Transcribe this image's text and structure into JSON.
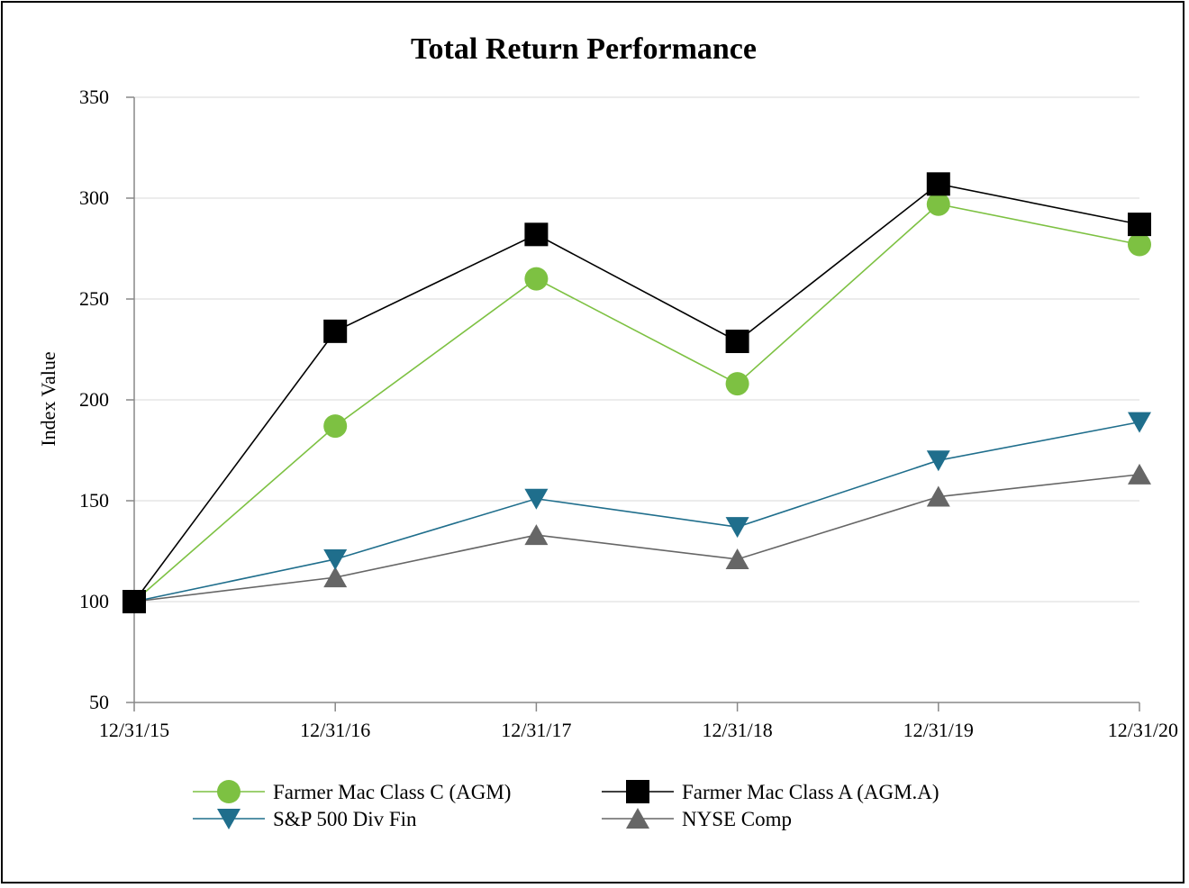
{
  "chart_data": {
    "type": "line",
    "title": "Total Return Performance",
    "xlabel": "",
    "ylabel": "Index Value",
    "categories": [
      "12/31/15",
      "12/31/16",
      "12/31/17",
      "12/31/18",
      "12/31/19",
      "12/31/20"
    ],
    "yticks": [
      50,
      100,
      150,
      200,
      250,
      300,
      350
    ],
    "ylim": [
      50,
      350
    ],
    "grid": "horizontal",
    "legend_position": "bottom",
    "series": [
      {
        "name": "Farmer Mac Class C (AGM)",
        "color": "#7dc142",
        "marker": "circle",
        "values": [
          100,
          187,
          260,
          208,
          297,
          277
        ]
      },
      {
        "name": "Farmer Mac Class A (AGM.A)",
        "color": "#000000",
        "marker": "square",
        "values": [
          100,
          234,
          282,
          229,
          307,
          287
        ]
      },
      {
        "name": "S&P 500 Div Fin",
        "color": "#1f6e8c",
        "marker": "triangle-down",
        "values": [
          100,
          121,
          151,
          137,
          170,
          189
        ]
      },
      {
        "name": "NYSE Comp",
        "color": "#666666",
        "marker": "triangle-up",
        "values": [
          100,
          112,
          133,
          121,
          152,
          163
        ]
      }
    ]
  }
}
